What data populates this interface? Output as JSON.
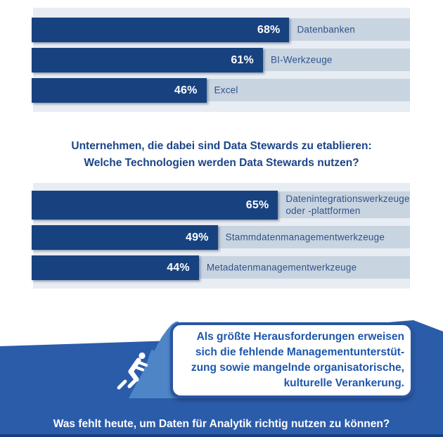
{
  "chart_data": [
    {
      "type": "bar",
      "unit": "%",
      "xlim": [
        0,
        100
      ],
      "rows": [
        {
          "value": 68,
          "label": "Datenbanken",
          "label_lines": [
            "Datenbanken"
          ]
        },
        {
          "value": 61,
          "label": "BI-Werkzeuge",
          "label_lines": [
            "BI-Werkzeuge"
          ]
        },
        {
          "value": 46,
          "label": "Excel",
          "label_lines": [
            "Excel"
          ]
        }
      ]
    },
    {
      "type": "bar",
      "unit": "%",
      "xlim": [
        0,
        100
      ],
      "title_lines": [
        "Unternehmen, die dabei sind Data Stewards zu etablieren:",
        "Welche Technologien werden Data Stewards nutzen?"
      ],
      "rows": [
        {
          "value": 65,
          "label": "Datenintegrationswerkzeuge oder -plattformen",
          "label_lines": [
            "Datenintegrationswerkzeuge",
            "oder -plattformen"
          ]
        },
        {
          "value": 49,
          "label": "Stammdatenmanagementwerkzeuge",
          "label_lines": [
            "Stammdatenmanagementwerkzeuge"
          ]
        },
        {
          "value": 44,
          "label": "Metadatenmanagementwerkzeuge",
          "label_lines": [
            "Metadatenmanagementwerkzeuge"
          ]
        }
      ]
    }
  ],
  "callout": {
    "lines": [
      "Als größte Herausforderungen erweisen",
      "sich die fehlende Managementunterstüt-",
      "zung sowie mangelnde organisatorische,",
      "kulturelle Verankerung."
    ]
  },
  "question": "Was fehlt heute, um Daten für Analytik richtig nutzen zu können?",
  "colors": {
    "bar": "#17427f",
    "track": "#c9d4e1",
    "panel": "#e8ecf3",
    "bottom_background": "#2b5caa",
    "mountain": "#4e85c7",
    "callout_text": "#1e57ac",
    "heading_text": "#1c4587",
    "label_text": "#2f538b",
    "bottom_strip": "#18407e"
  }
}
